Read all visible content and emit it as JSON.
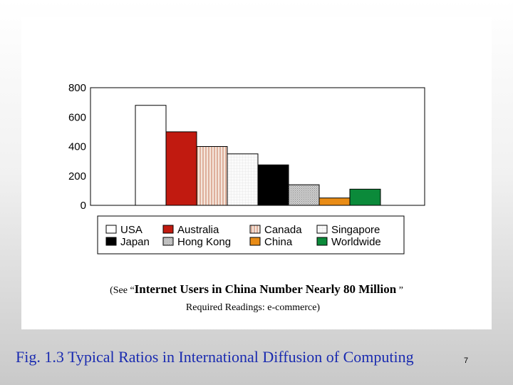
{
  "chart_data": {
    "type": "bar",
    "categories": [
      "USA",
      "Australia",
      "Canada",
      "Singapore",
      "Japan",
      "Hong Kong",
      "China",
      "Worldwide"
    ],
    "values": [
      680,
      500,
      400,
      350,
      275,
      140,
      50,
      110
    ],
    "ylim": [
      0,
      800
    ],
    "yticks": [
      "800",
      "600",
      "400",
      "200",
      "0"
    ],
    "grid": false,
    "legend_position": "bottom",
    "colors": [
      "#ffffff",
      "#c11a10",
      "#f4e6dc",
      "#f7f7f7",
      "#000000",
      "#c4c4c4",
      "#e98c16",
      "#0b8a3a"
    ],
    "patterns": [
      "solid",
      "solid",
      "vertical-stripes",
      "light-grid",
      "solid",
      "dotted",
      "solid",
      "solid"
    ],
    "legend": [
      "USA",
      "Australia",
      "Canada",
      "Singapore",
      "Japan",
      "Hong Kong",
      "China",
      "Worldwide"
    ]
  },
  "reading": {
    "prefix": "(See “",
    "title": "Internet Users in China Number Nearly 80 Million",
    "suffix": " ”",
    "line2": "Required Readings: e-commerce)"
  },
  "caption": "Fig. 1.3 Typical Ratios in International Diffusion of Computing",
  "page_number": "7"
}
